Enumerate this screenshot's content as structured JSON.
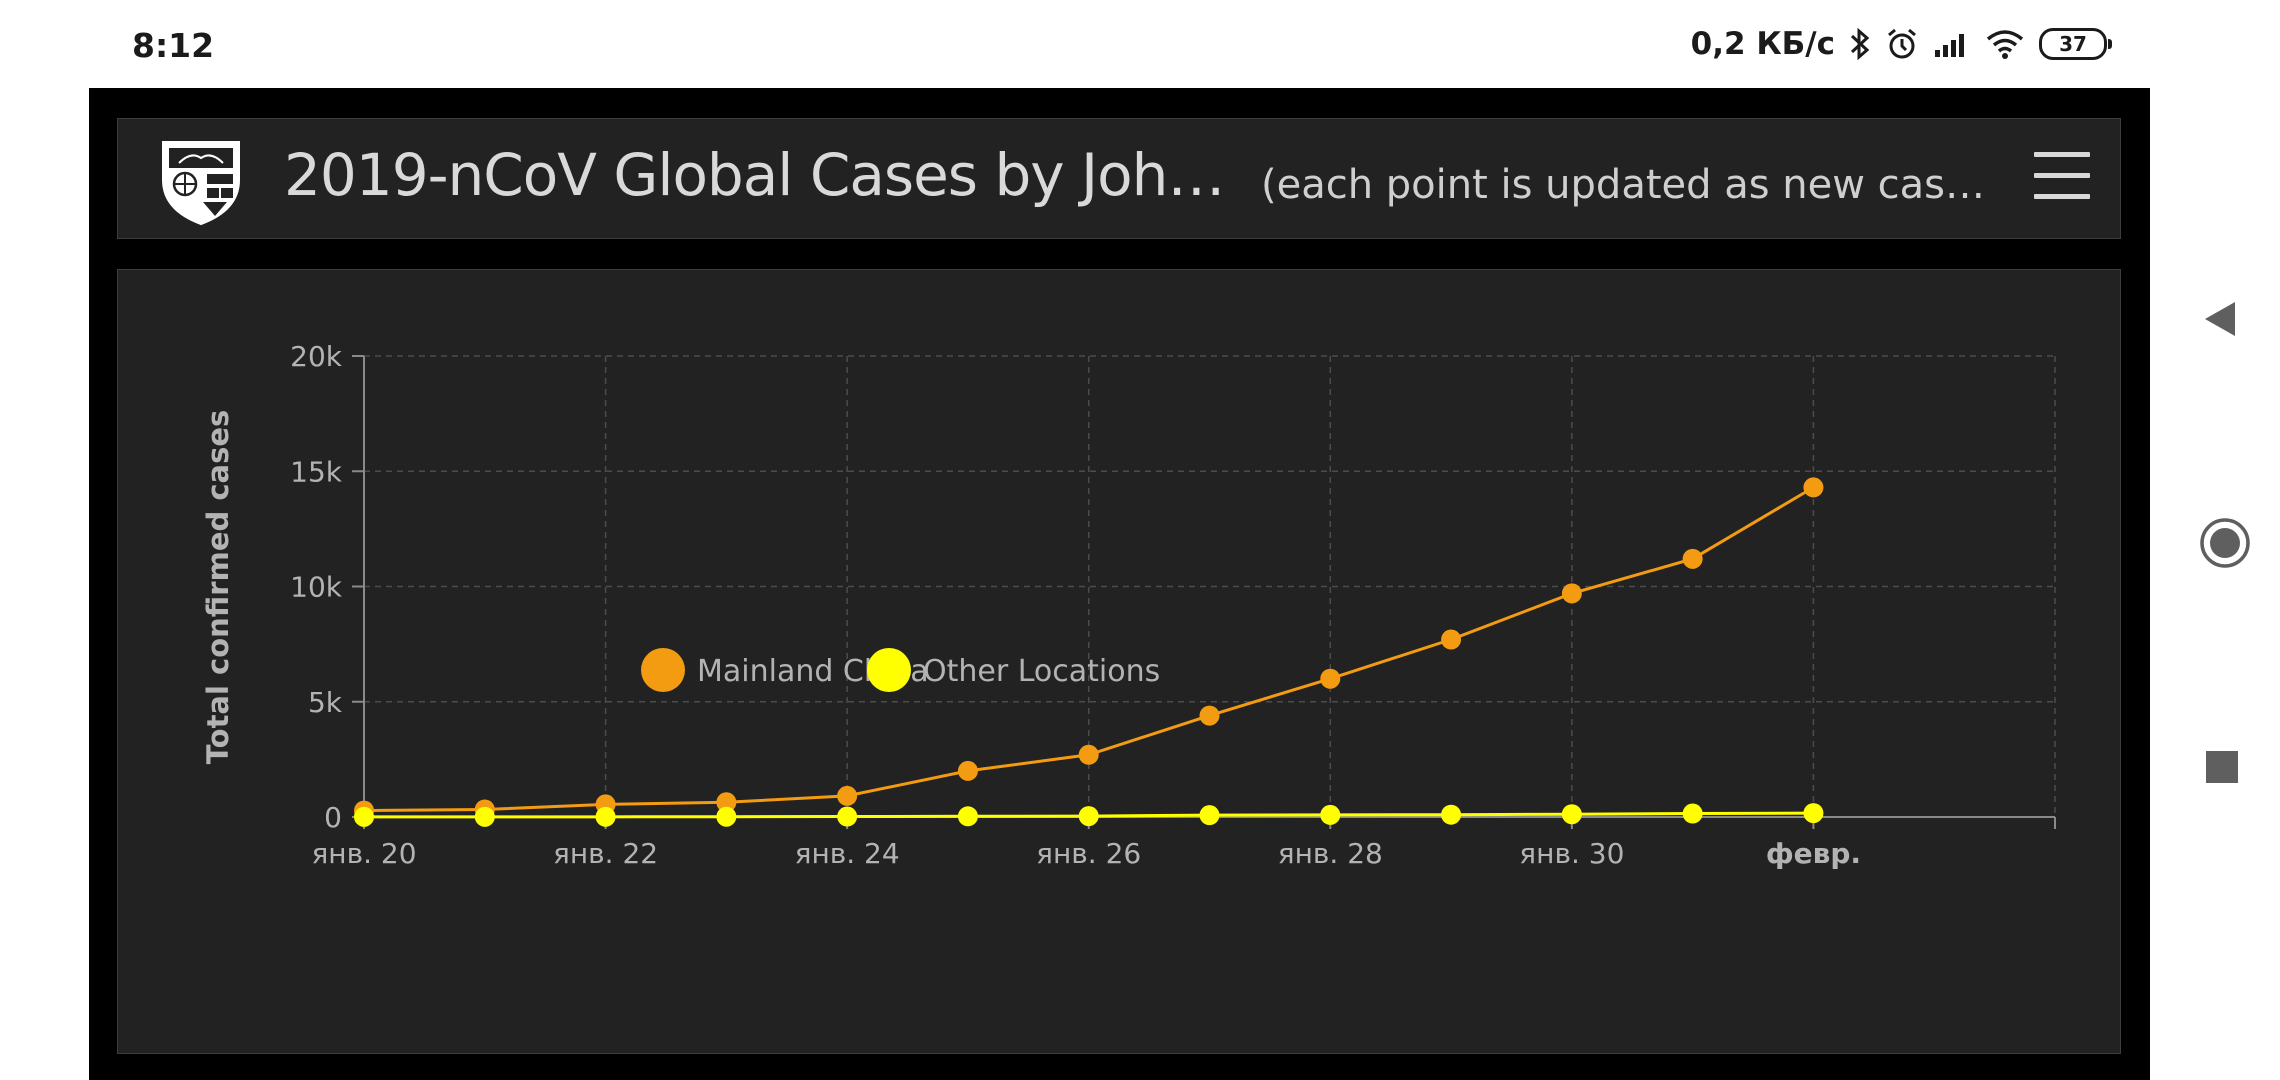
{
  "status_bar": {
    "time": "8:12",
    "net_speed": "0,2 КБ/с",
    "battery": "37",
    "icons": [
      "bluetooth-icon",
      "alarm-icon",
      "signal-icon",
      "wifi-icon",
      "battery-icon"
    ]
  },
  "header": {
    "title": "2019-nCoV Global Cases by Joh…",
    "subtitle": "(each point is updated as new cas…",
    "logo_icon": "university-shield-logo",
    "menu_icon": "hamburger-menu-icon"
  },
  "colors": {
    "mainland_china": "#f39c12",
    "other_locations": "#ffff00",
    "panel_bg": "#222222",
    "axis_text": "#b3b3b3"
  },
  "chart_data": {
    "type": "line",
    "title": "",
    "xlabel": "",
    "ylabel": "Total confirmed cases",
    "x": [
      "2020-01-20",
      "2020-01-21",
      "2020-01-22",
      "2020-01-23",
      "2020-01-24",
      "2020-01-25",
      "2020-01-26",
      "2020-01-27",
      "2020-01-28",
      "2020-01-29",
      "2020-01-30",
      "2020-01-31",
      "2020-02-01"
    ],
    "x_tick_labels": [
      "янв. 20",
      "янв. 22",
      "янв. 24",
      "янв. 26",
      "янв. 28",
      "янв. 30",
      "февр."
    ],
    "x_tick_dates": [
      "2020-01-20",
      "2020-01-22",
      "2020-01-24",
      "2020-01-26",
      "2020-01-28",
      "2020-01-30",
      "2020-02-01"
    ],
    "x_range": [
      "2020-01-20",
      "2020-02-03"
    ],
    "y_tick_labels": [
      "0",
      "5k",
      "10k",
      "15k",
      "20k"
    ],
    "y_ticks": [
      0,
      5000,
      10000,
      15000,
      20000
    ],
    "ylim": [
      0,
      20000
    ],
    "grid": true,
    "legend_position": "bottom",
    "series": [
      {
        "name": "Mainland China",
        "values": [
          278,
          326,
          547,
          639,
          916,
          2000,
          2700,
          4400,
          6000,
          7700,
          9700,
          11200,
          14300
        ]
      },
      {
        "name": "Other Locations",
        "values": [
          6,
          7,
          8,
          12,
          20,
          30,
          40,
          80,
          90,
          100,
          120,
          150,
          170
        ]
      }
    ]
  },
  "navigation": {
    "back_icon": "back-triangle-icon",
    "home_icon": "home-circle-icon",
    "recents_icon": "recents-square-icon"
  }
}
